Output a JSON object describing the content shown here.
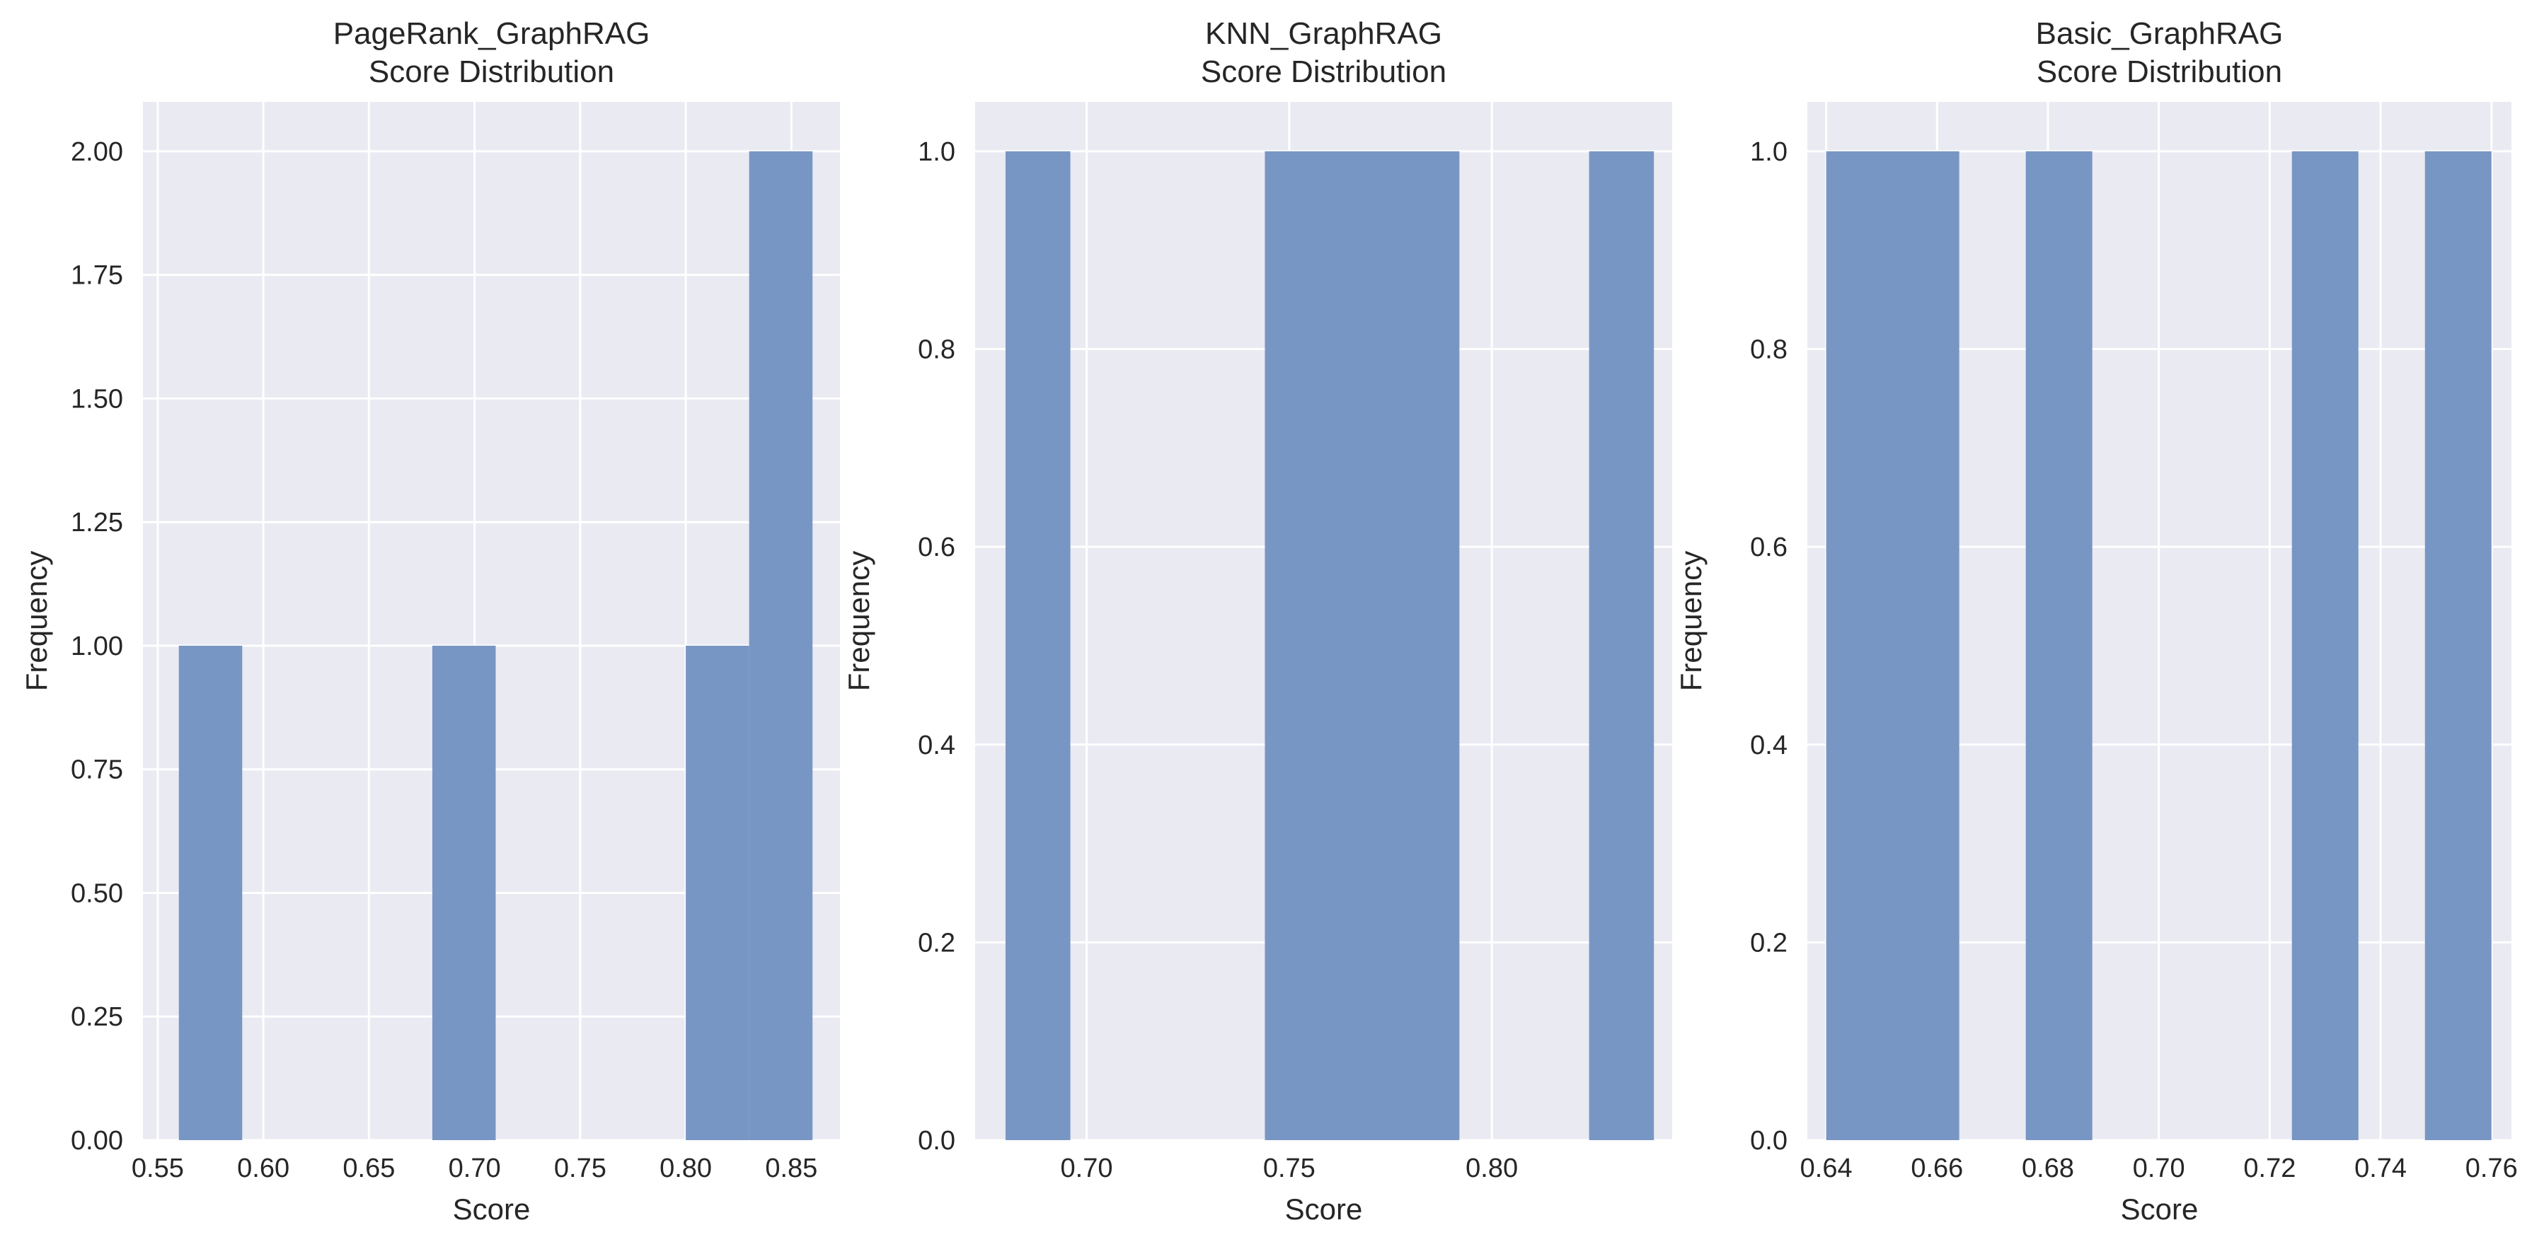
{
  "chart_data": [
    {
      "type": "bar",
      "title_line1": "PageRank_GraphRAG",
      "title_line2": "Score Distribution",
      "xlabel": "Score",
      "ylabel": "Frequency",
      "xlim": [
        0.543,
        0.873
      ],
      "ylim": [
        0,
        2.1
      ],
      "xticks": [
        0.55,
        0.6,
        0.65,
        0.7,
        0.75,
        0.8,
        0.85
      ],
      "xtick_labels": [
        "0.55",
        "0.60",
        "0.65",
        "0.70",
        "0.75",
        "0.80",
        "0.85"
      ],
      "yticks": [
        0,
        0.25,
        0.5,
        0.75,
        1.0,
        1.25,
        1.5,
        1.75,
        2.0
      ],
      "ytick_labels": [
        "0.00",
        "0.25",
        "0.50",
        "0.75",
        "1.00",
        "1.25",
        "1.50",
        "1.75",
        "2.00"
      ],
      "bins": [
        {
          "x0": 0.56,
          "x1": 0.59,
          "value": 1
        },
        {
          "x0": 0.68,
          "x1": 0.71,
          "value": 1
        },
        {
          "x0": 0.8,
          "x1": 0.83,
          "value": 1
        },
        {
          "x0": 0.83,
          "x1": 0.86,
          "value": 2
        }
      ],
      "grid": true
    },
    {
      "type": "bar",
      "title_line1": "KNN_GraphRAG",
      "title_line2": "Score Distribution",
      "xlabel": "Score",
      "ylabel": "Frequency",
      "xlim": [
        0.6725,
        0.8445
      ],
      "ylim": [
        0,
        1.05
      ],
      "xticks": [
        0.7,
        0.75,
        0.8
      ],
      "xtick_labels": [
        "0.70",
        "0.75",
        "0.80"
      ],
      "yticks": [
        0,
        0.2,
        0.4,
        0.6,
        0.8,
        1.0
      ],
      "ytick_labels": [
        "0.0",
        "0.2",
        "0.4",
        "0.6",
        "0.8",
        "1.0"
      ],
      "bins": [
        {
          "x0": 0.68,
          "x1": 0.696,
          "value": 1
        },
        {
          "x0": 0.744,
          "x1": 0.792,
          "value": 1
        },
        {
          "x0": 0.824,
          "x1": 0.84,
          "value": 1
        }
      ],
      "grid": true
    },
    {
      "type": "bar",
      "title_line1": "Basic_GraphRAG",
      "title_line2": "Score Distribution",
      "xlabel": "Score",
      "ylabel": "Frequency",
      "xlim": [
        0.6366,
        0.7636
      ],
      "ylim": [
        0,
        1.05
      ],
      "xticks": [
        0.64,
        0.66,
        0.68,
        0.7,
        0.72,
        0.74,
        0.76
      ],
      "xtick_labels": [
        "0.64",
        "0.66",
        "0.68",
        "0.70",
        "0.72",
        "0.74",
        "0.76"
      ],
      "yticks": [
        0,
        0.2,
        0.4,
        0.6,
        0.8,
        1.0
      ],
      "ytick_labels": [
        "0.0",
        "0.2",
        "0.4",
        "0.6",
        "0.8",
        "1.0"
      ],
      "bins": [
        {
          "x0": 0.64,
          "x1": 0.664,
          "value": 1
        },
        {
          "x0": 0.676,
          "x1": 0.688,
          "value": 1
        },
        {
          "x0": 0.724,
          "x1": 0.736,
          "value": 1
        },
        {
          "x0": 0.748,
          "x1": 0.76,
          "value": 1
        }
      ],
      "grid": true
    }
  ],
  "colors": {
    "bar": "#7896c3",
    "plot_background": "#eaeaf2",
    "grid": "#ffffff",
    "text": "#262626"
  }
}
